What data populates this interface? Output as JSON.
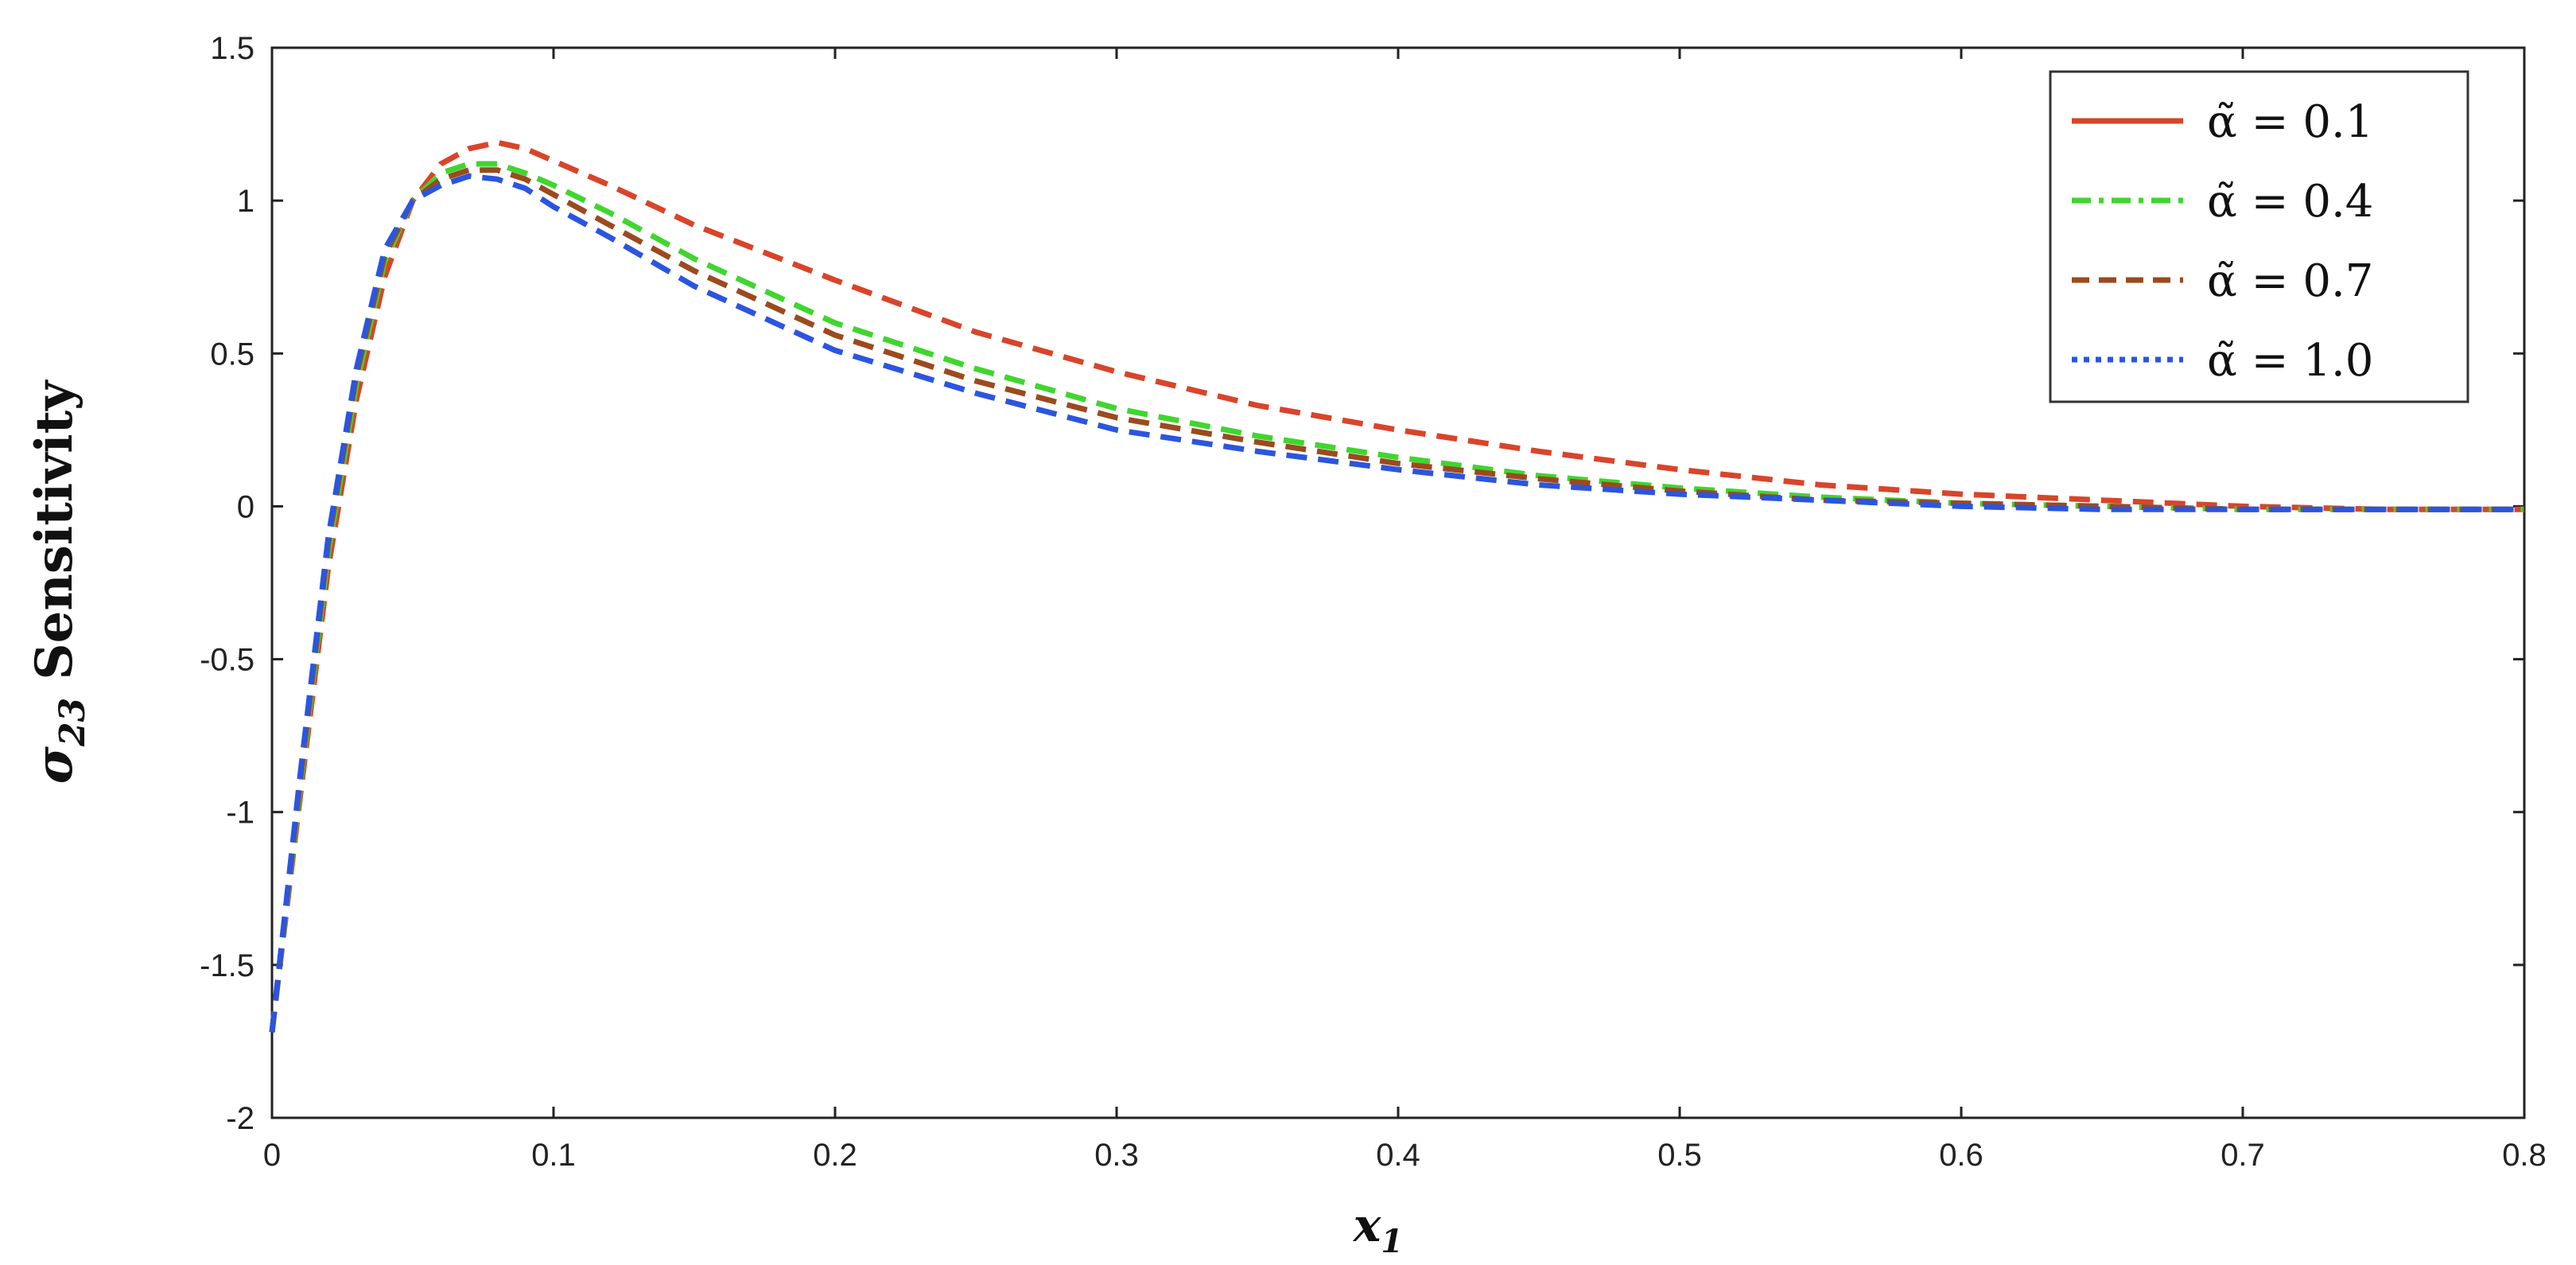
{
  "chart_data": {
    "type": "line",
    "title": "",
    "xlabel": "x",
    "xlabel_sub": "1",
    "ylabel": "σ",
    "ylabel_sub": "23",
    "ylabel_suffix": " Sensitivity",
    "xlim": [
      0,
      0.8
    ],
    "ylim": [
      -2,
      1.5
    ],
    "xticks": [
      "0",
      "0.1",
      "0.2",
      "0.3",
      "0.4",
      "0.5",
      "0.6",
      "0.7",
      "0.8"
    ],
    "yticks": [
      "1.5",
      "1",
      "0.5",
      "0",
      "-0.5",
      "-1",
      "-1.5",
      "-2"
    ],
    "grid": false,
    "legend_position": "top-right",
    "series": [
      {
        "name": "α̃ = 0.1",
        "color": "#d9442a",
        "legend_style": "solid",
        "x": [
          0,
          0.01,
          0.02,
          0.03,
          0.04,
          0.05,
          0.06,
          0.07,
          0.08,
          0.09,
          0.1,
          0.12,
          0.15,
          0.2,
          0.25,
          0.3,
          0.35,
          0.4,
          0.45,
          0.5,
          0.55,
          0.6,
          0.65,
          0.7,
          0.75,
          0.8
        ],
        "values": [
          -1.72,
          -0.95,
          -0.2,
          0.35,
          0.75,
          1.0,
          1.12,
          1.17,
          1.19,
          1.17,
          1.13,
          1.05,
          0.92,
          0.74,
          0.57,
          0.44,
          0.33,
          0.25,
          0.18,
          0.12,
          0.07,
          0.04,
          0.02,
          0.0,
          -0.01,
          -0.01
        ]
      },
      {
        "name": "α̃ = 0.4",
        "color": "#3fd62e",
        "legend_style": "dash-dot",
        "x": [
          0,
          0.01,
          0.02,
          0.03,
          0.04,
          0.05,
          0.06,
          0.07,
          0.08,
          0.09,
          0.1,
          0.12,
          0.15,
          0.2,
          0.25,
          0.3,
          0.35,
          0.4,
          0.45,
          0.5,
          0.55,
          0.6,
          0.65,
          0.7,
          0.75,
          0.8
        ],
        "values": [
          -1.72,
          -0.92,
          -0.15,
          0.4,
          0.8,
          1.0,
          1.09,
          1.12,
          1.12,
          1.09,
          1.05,
          0.96,
          0.81,
          0.6,
          0.45,
          0.32,
          0.23,
          0.16,
          0.1,
          0.06,
          0.03,
          0.01,
          0.0,
          -0.01,
          -0.01,
          -0.01
        ]
      },
      {
        "name": "α̃ = 0.7",
        "color": "#9c4a1e",
        "legend_style": "dashed",
        "x": [
          0,
          0.01,
          0.02,
          0.03,
          0.04,
          0.05,
          0.06,
          0.07,
          0.08,
          0.09,
          0.1,
          0.12,
          0.15,
          0.2,
          0.25,
          0.3,
          0.35,
          0.4,
          0.45,
          0.5,
          0.55,
          0.6,
          0.65,
          0.7,
          0.75,
          0.8
        ],
        "values": [
          -1.72,
          -0.9,
          -0.12,
          0.43,
          0.82,
          1.0,
          1.07,
          1.1,
          1.1,
          1.07,
          1.02,
          0.92,
          0.77,
          0.56,
          0.41,
          0.29,
          0.21,
          0.14,
          0.09,
          0.05,
          0.02,
          0.01,
          0.0,
          -0.01,
          -0.01,
          -0.01
        ]
      },
      {
        "name": "α̃ = 1.0",
        "color": "#2b55e0",
        "legend_style": "dotted",
        "x": [
          0,
          0.01,
          0.02,
          0.03,
          0.04,
          0.05,
          0.06,
          0.07,
          0.08,
          0.09,
          0.1,
          0.12,
          0.15,
          0.2,
          0.25,
          0.3,
          0.35,
          0.4,
          0.45,
          0.5,
          0.55,
          0.6,
          0.65,
          0.7,
          0.75,
          0.8
        ],
        "values": [
          -1.72,
          -0.88,
          -0.1,
          0.45,
          0.84,
          1.0,
          1.05,
          1.08,
          1.07,
          1.04,
          0.98,
          0.88,
          0.72,
          0.51,
          0.37,
          0.25,
          0.18,
          0.12,
          0.07,
          0.04,
          0.02,
          0.0,
          -0.01,
          -0.01,
          -0.01,
          -0.01
        ]
      }
    ]
  }
}
